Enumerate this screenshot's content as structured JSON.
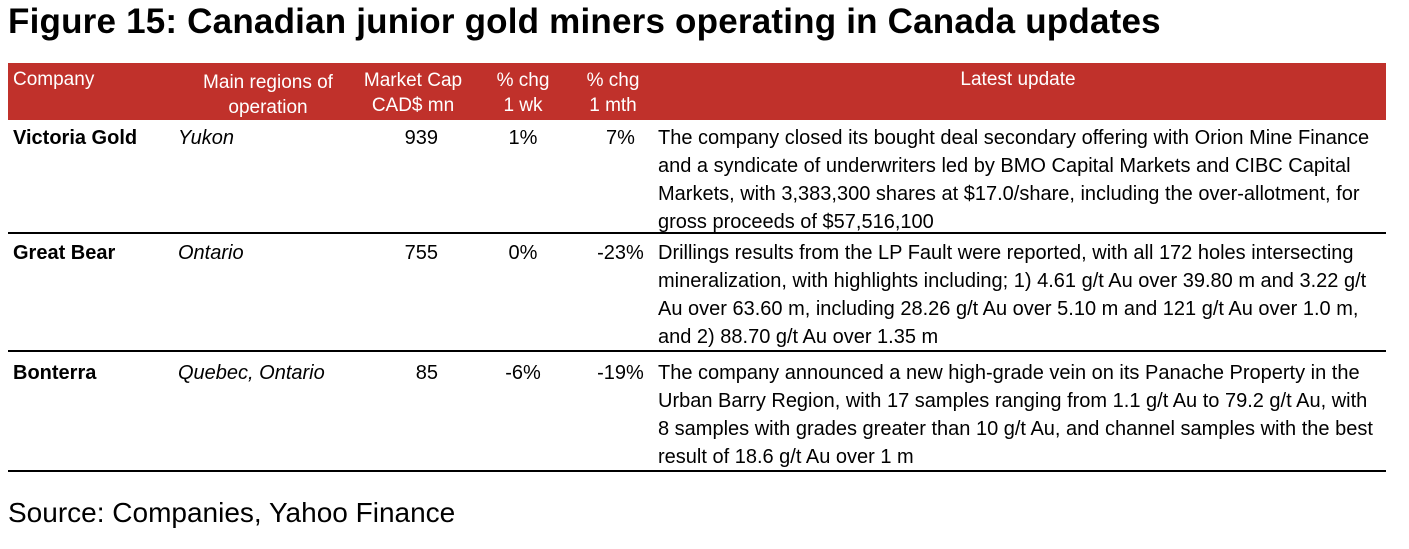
{
  "title": "Figure 15: Canadian junior gold miners operating in Canada updates",
  "header": {
    "company": "Company",
    "regions_1": "Main regions of",
    "regions_2": "operation",
    "mcap_1": "Market Cap",
    "mcap_2": "CAD$ mn",
    "wk_1": "% chg",
    "wk_2": "1 wk",
    "mth_1": "% chg",
    "mth_2": "1 mth",
    "update": "Latest update"
  },
  "rows": [
    {
      "company": "Victoria Gold",
      "region": "Yukon",
      "mcap": "939",
      "wk": "1%",
      "mth": "7%",
      "update": "The company closed its bought deal secondary offering with Orion Mine Finance and a syndicate of underwriters led by BMO Capital Markets and CIBC Capital Markets, with 3,383,300 shares at $17.0/share, including the over-allotment, for gross proceeds of $57,516,100"
    },
    {
      "company": "Great Bear",
      "region": "Ontario",
      "mcap": "755",
      "wk": "0%",
      "mth": "-23%",
      "update": "Drillings results from the LP Fault were reported, with all 172 holes intersecting mineralization, with highlights including; 1) 4.61 g/t Au over 39.80 m and 3.22 g/t Au over 63.60 m, including 28.26 g/t Au over 5.10 m and 121 g/t Au over 1.0 m, and 2) 88.70 g/t Au over 1.35 m"
    },
    {
      "company": "Bonterra",
      "region": "Quebec, Ontario",
      "mcap": "85",
      "wk": "-6%",
      "mth": "-19%",
      "update": "The company announced a new high-grade vein on its Panache Property in the Urban Barry Region, with 17 samples ranging from 1.1 g/t Au to 79.2 g/t Au, with 8 samples with grades greater than 10 g/t Au, and channel samples with the best result of 18.6 g/t Au over 1 m"
    }
  ],
  "source": "Source: Companies, Yahoo Finance"
}
